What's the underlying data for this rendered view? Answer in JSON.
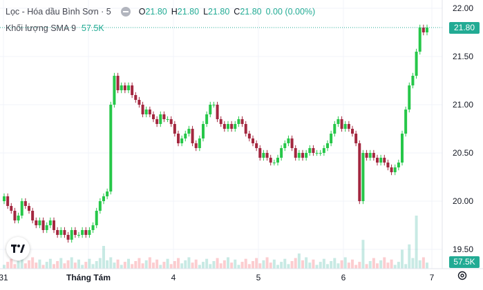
{
  "header": {
    "symbol": "Lọc - Hóa dầu Bình Sơn · 5",
    "ohlc": [
      {
        "k": "O",
        "v": "21.80"
      },
      {
        "k": "H",
        "v": "21.80"
      },
      {
        "k": "L",
        "v": "21.80"
      },
      {
        "k": "C",
        "v": "21.80"
      },
      {
        "k": "",
        "v": "0.00 (0.00%)"
      }
    ],
    "volume_label": "Khối lượng SMA 9",
    "volume_value": "57.5K"
  },
  "price_tag": "21.80",
  "volume_tag": "57.5K",
  "colors": {
    "up": "#22ab94",
    "down": "#f23645",
    "up_candle": "#26c749",
    "down_candle": "#a3273f"
  },
  "chart_data": {
    "type": "candlestick",
    "price_axis": {
      "min": 19.4,
      "max": 22.0,
      "ticks": [
        "22.00",
        "21.50",
        "21.00",
        "20.50",
        "20.00",
        "19.50"
      ]
    },
    "time_axis": [
      "31",
      "Tháng Tám",
      "4",
      "5",
      "6",
      "7"
    ],
    "last_price": 21.8,
    "candles_close": [
      20.05,
      19.95,
      19.9,
      19.8,
      19.85,
      20.0,
      19.95,
      19.9,
      19.8,
      19.75,
      19.8,
      19.7,
      19.75,
      19.8,
      19.7,
      19.65,
      19.7,
      19.65,
      19.6,
      19.7,
      19.65,
      19.65,
      19.7,
      19.65,
      19.7,
      19.75,
      19.9,
      20.0,
      20.05,
      20.1,
      21.0,
      21.3,
      21.15,
      21.2,
      21.15,
      21.2,
      21.1,
      21.05,
      21.0,
      20.9,
      20.95,
      20.9,
      20.85,
      20.8,
      20.9,
      20.85,
      20.85,
      20.8,
      20.7,
      20.6,
      20.65,
      20.7,
      20.75,
      20.6,
      20.55,
      20.65,
      20.8,
      20.9,
      21.0,
      21.0,
      20.85,
      20.8,
      20.75,
      20.8,
      20.75,
      20.8,
      20.85,
      20.8,
      20.7,
      20.65,
      20.6,
      20.55,
      20.45,
      20.5,
      20.45,
      20.4,
      20.4,
      20.45,
      20.55,
      20.6,
      20.65,
      20.55,
      20.45,
      20.5,
      20.45,
      20.5,
      20.55,
      20.5,
      20.5,
      20.5,
      20.55,
      20.6,
      20.7,
      20.8,
      20.85,
      20.75,
      20.8,
      20.75,
      20.7,
      20.6,
      20.0,
      20.5,
      20.45,
      20.5,
      20.45,
      20.4,
      20.45,
      20.4,
      20.35,
      20.3,
      20.35,
      20.4,
      20.7,
      20.95,
      21.2,
      21.3,
      21.55,
      21.8,
      21.75,
      21.8
    ],
    "volume_spikes": [
      {
        "i": 28,
        "v": 0.3
      },
      {
        "i": 83,
        "v": 0.2
      },
      {
        "i": 101,
        "v": 0.38
      },
      {
        "i": 112,
        "v": 0.25
      },
      {
        "i": 114,
        "v": 0.32
      },
      {
        "i": 116,
        "v": 0.7
      }
    ]
  }
}
